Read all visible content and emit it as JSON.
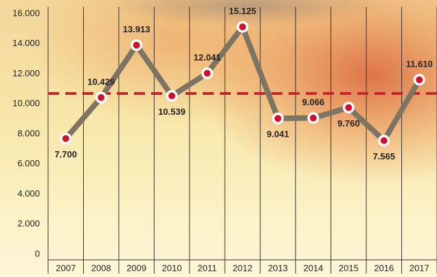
{
  "chart_data": {
    "type": "line",
    "categories": [
      "2007",
      "2008",
      "2009",
      "2010",
      "2011",
      "2012",
      "2013",
      "2014",
      "2015",
      "2016",
      "2017"
    ],
    "values": [
      7700,
      10429,
      13913,
      10539,
      12041,
      15125,
      9041,
      9066,
      9760,
      7565,
      11610
    ],
    "value_labels": [
      "7.700",
      "10.429",
      "13.913",
      "10.539",
      "12.041",
      "15.125",
      "9.041",
      "9.066",
      "9.760",
      "7.565",
      "11.610"
    ],
    "color": "#7d7462",
    "marker_color": "#d0112b",
    "reference_line": 10700,
    "reference_color": "#c0282d",
    "ylim": [
      0,
      16000
    ],
    "yticks": [
      0,
      {
        "value": 2000,
        "label": "2.000"
      },
      {
        "value": 4000,
        "label": "4.000"
      },
      {
        "value": 6000,
        "label": "6.000"
      },
      {
        "value": 8000,
        "label": "8.000"
      },
      {
        "value": 10000,
        "label": "10.000"
      },
      {
        "value": 12000,
        "label": "12.000"
      },
      {
        "value": 14000,
        "label": "14.000"
      },
      {
        "value": 16000,
        "label": "16.000"
      }
    ]
  }
}
